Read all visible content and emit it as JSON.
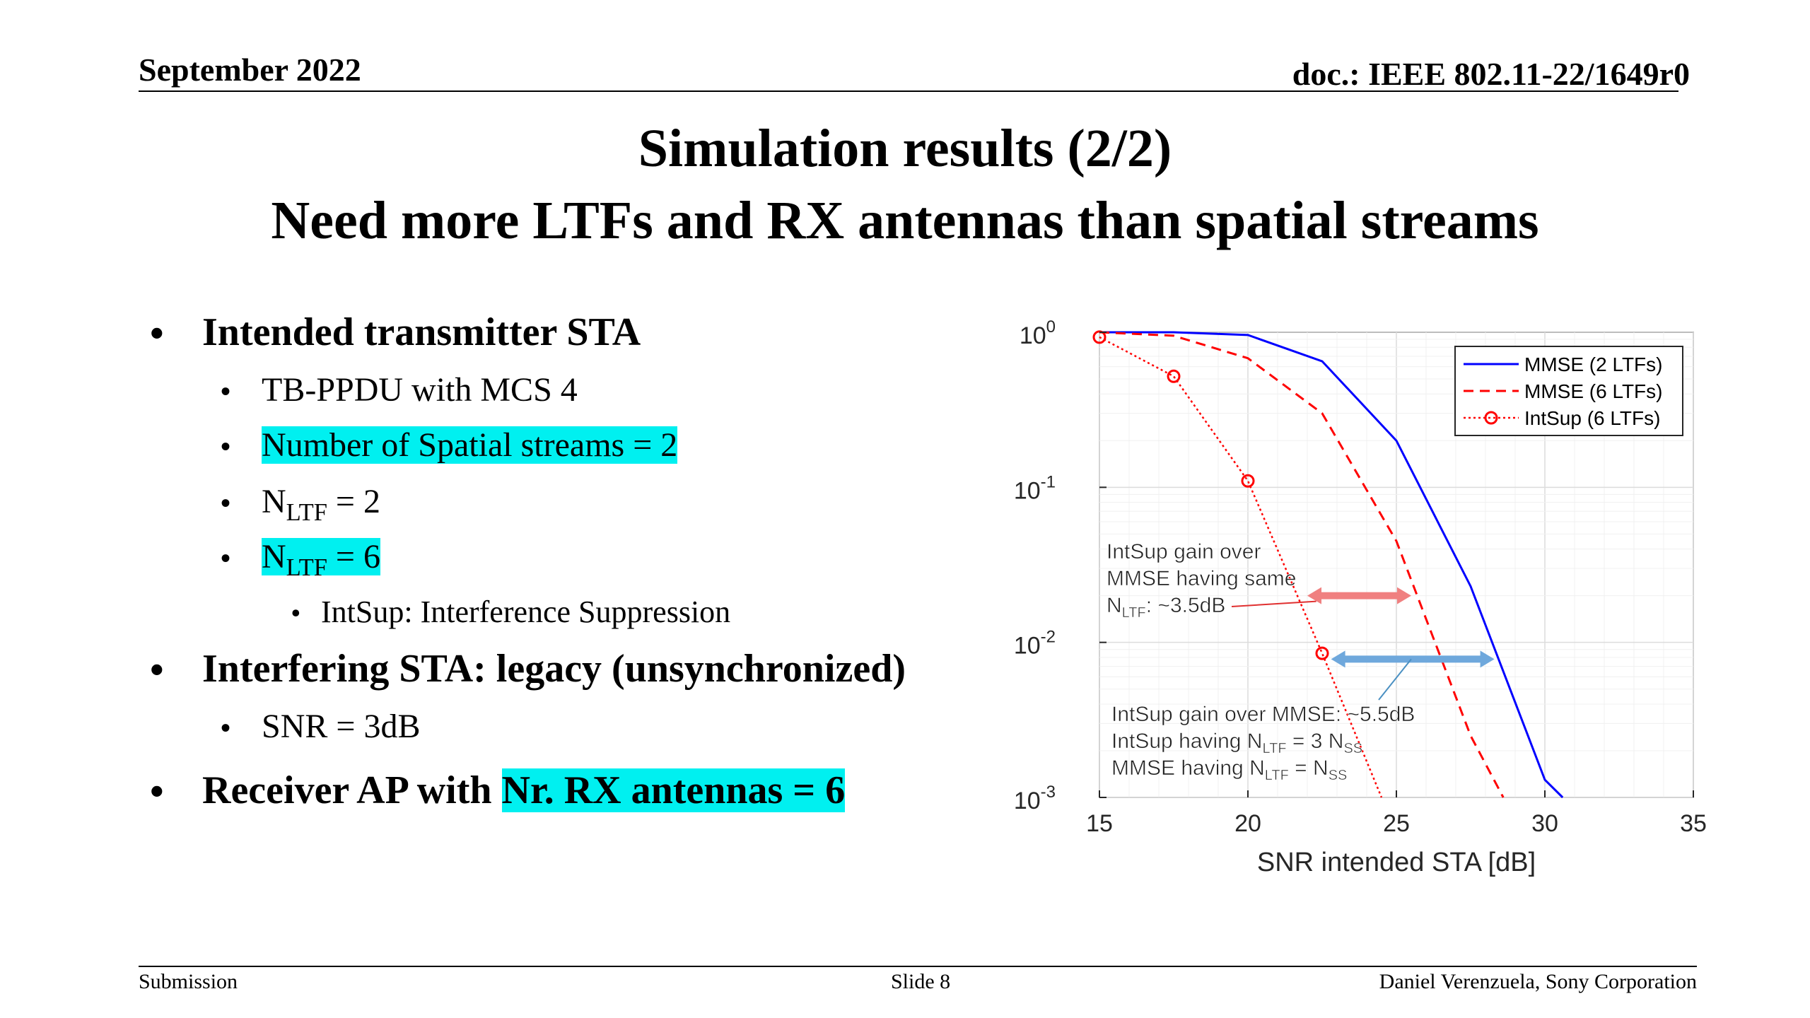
{
  "header": {
    "date": "September 2022",
    "doc": "doc.: IEEE 802.11-22/1649r0"
  },
  "title": {
    "line1": "Simulation results (2/2)",
    "line2": "Need more LTFs and RX antennas than spatial streams"
  },
  "bullets": {
    "b1": "Intended transmitter STA",
    "b1_1": "TB-PPDU with MCS 4",
    "b1_2": "Number of Spatial streams = 2",
    "b1_3_base": "N",
    "b1_3_sub": "LTF",
    "b1_3_tail": " = 2",
    "b1_4_base": "N",
    "b1_4_sub": "LTF",
    "b1_4_tail": " = 6",
    "b1_4_1": "IntSup: Interference Suppression",
    "b2": "Interfering STA: legacy (unsynchronized)",
    "b2_1": "SNR = 3dB",
    "b3_prefix": "Receiver AP with ",
    "b3_hl": "Nr. RX antennas = 6"
  },
  "footer": {
    "left": "Submission",
    "center": "Slide 8",
    "right": "Daniel Verenzuela, Sony Corporation"
  },
  "chart_data": {
    "type": "line",
    "xlabel": "SNR intended STA [dB]",
    "x_ticks": [
      "15",
      "20",
      "25",
      "30",
      "35"
    ],
    "xlim": [
      15,
      35
    ],
    "y_scale": "log",
    "ylim": [
      0.001,
      1
    ],
    "y_ticks": [
      {
        "value": 1,
        "base": "10",
        "exp": "0"
      },
      {
        "value": 0.1,
        "base": "10",
        "exp": "-1"
      },
      {
        "value": 0.01,
        "base": "10",
        "exp": "-2"
      },
      {
        "value": 0.001,
        "base": "10",
        "exp": "-3"
      }
    ],
    "grid": true,
    "legend_position": "top-right",
    "series": [
      {
        "name": "MMSE (2 LTFs)",
        "color": "#0000ff",
        "style": "solid",
        "marker": "none",
        "x": [
          15,
          17.5,
          20,
          22.5,
          25,
          27.5,
          30,
          30.6
        ],
        "y": [
          1.0,
          1.0,
          0.96,
          0.65,
          0.2,
          0.023,
          0.0013,
          0.001
        ]
      },
      {
        "name": "MMSE (6 LTFs)",
        "color": "#ff0000",
        "style": "dashed",
        "marker": "none",
        "x": [
          15,
          17.5,
          20,
          22.5,
          25,
          27.5,
          28.6
        ],
        "y": [
          1.0,
          0.95,
          0.68,
          0.3,
          0.045,
          0.0025,
          0.001
        ]
      },
      {
        "name": "IntSup (6 LTFs)",
        "color": "#ff0000",
        "style": "dotted",
        "marker": "circle",
        "x": [
          15,
          17.5,
          20,
          22.5,
          24.5
        ],
        "y": [
          0.93,
          0.52,
          0.11,
          0.0085,
          0.001
        ]
      }
    ],
    "annotations": {
      "a1_line1": "IntSup gain over",
      "a1_line2": "MMSE having same",
      "a1_line3_base": "N",
      "a1_line3_sub": "LTF",
      "a1_line3_tail": ":  ~3.5dB",
      "a1_arrow_color": "#f08080",
      "a1_arrow_x": [
        22,
        25.5
      ],
      "a1_arrow_y": 0.02,
      "a2_line1": "IntSup gain over MMSE: ~5.5dB",
      "a2_line2_base": "IntSup having N",
      "a2_line2_sub": "LTF",
      "a2_line2_mid": " = 3 N",
      "a2_line2_sub2": "SS",
      "a3_base": "MMSE having N",
      "a3_sub": "LTF",
      "a3_mid": " = N",
      "a3_sub2": "SS",
      "a2_arrow_color": "#6fa8dc",
      "a2_arrow_x": [
        22.8,
        28.3
      ],
      "a2_arrow_y": 0.0078
    }
  }
}
